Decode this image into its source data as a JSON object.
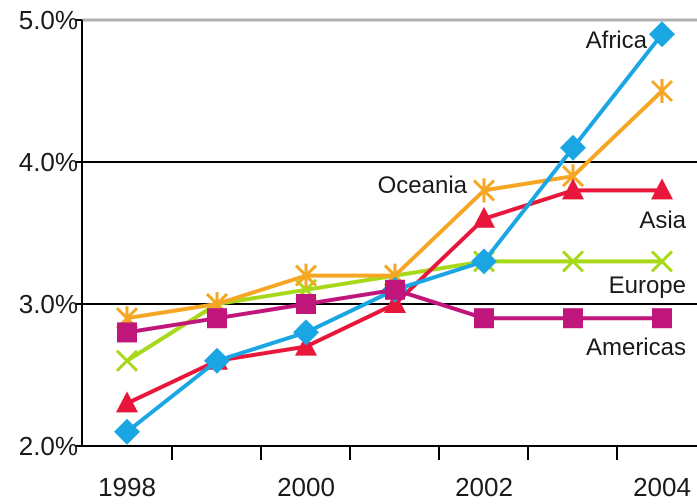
{
  "chart_data": {
    "type": "line",
    "x": [
      1998,
      1999,
      2000,
      2001,
      2002,
      2003,
      2004
    ],
    "x_tick_labels": [
      "1998",
      "2000",
      "2002",
      "2004"
    ],
    "y_tick_labels": [
      "2.0%",
      "3.0%",
      "4.0%",
      "5.0%"
    ],
    "ylim": [
      2.0,
      5.0
    ],
    "grid": "horizontal at 3.0%, 4.0% and 5.0%",
    "series": [
      {
        "name": "Africa",
        "color": "#1aa6e3",
        "marker": "diamond",
        "values": [
          2.1,
          2.6,
          2.8,
          3.1,
          3.3,
          4.1,
          4.9
        ]
      },
      {
        "name": "Oceania",
        "color": "#f5a623",
        "marker": "asterisk",
        "values": [
          2.9,
          3.0,
          3.2,
          3.2,
          3.8,
          3.9,
          4.5
        ]
      },
      {
        "name": "Asia",
        "color": "#e8163a",
        "marker": "triangle",
        "values": [
          2.3,
          2.6,
          2.7,
          3.0,
          3.6,
          3.8,
          3.8
        ]
      },
      {
        "name": "Europe",
        "color": "#a8d81a",
        "marker": "x",
        "values": [
          2.6,
          3.0,
          3.1,
          3.2,
          3.3,
          3.3,
          3.3
        ]
      },
      {
        "name": "Americas",
        "color": "#c0157a",
        "marker": "square",
        "values": [
          2.8,
          2.9,
          3.0,
          3.1,
          2.9,
          2.9,
          2.9
        ]
      }
    ]
  }
}
